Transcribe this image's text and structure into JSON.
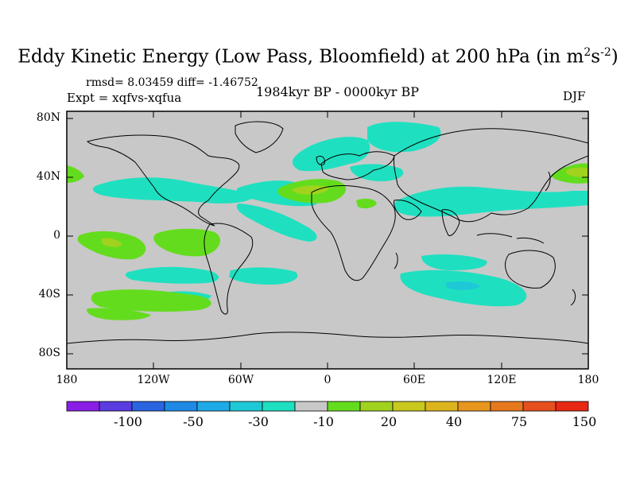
{
  "title": {
    "main": "Eddy Kinetic Energy (Low Pass, Bloomfield) at 200 hPa (in m",
    "sup1": "2",
    "mid": "s",
    "sup2": "-2",
    "close": ")"
  },
  "stats": "rmsd= 8.03459 diff= -1.46752",
  "experiment": "Expt = xqfvs-xqfua",
  "period": "1984kyr BP - 0000kyr BP",
  "season": "DJF",
  "y_axis_labels": [
    "80N",
    "40N",
    "0",
    "40S",
    "80S"
  ],
  "x_axis_labels": [
    "180",
    "120W",
    "60W",
    "0",
    "60E",
    "120E",
    "180"
  ],
  "colorbar": {
    "colors": [
      "#8a1ee6",
      "#5a3ce0",
      "#2a64e0",
      "#1e8ae6",
      "#1eaae6",
      "#1ec8d6",
      "#1ee0c0",
      "#c8c8c8",
      "#64dc1e",
      "#a0d21e",
      "#c8c81e",
      "#dcb41e",
      "#e6961e",
      "#e6781e",
      "#e6501e",
      "#e62814"
    ],
    "tick_labels": [
      "-100",
      "-50",
      "-30",
      "-10",
      "20",
      "40",
      "75",
      "150"
    ]
  },
  "colors": {
    "land_background": "#c8c8c8",
    "negative_anomaly": "#1ee0c0",
    "negative_strong": "#1ec8d6",
    "positive_anomaly": "#64dc1e",
    "positive_strong": "#a0d21e"
  }
}
